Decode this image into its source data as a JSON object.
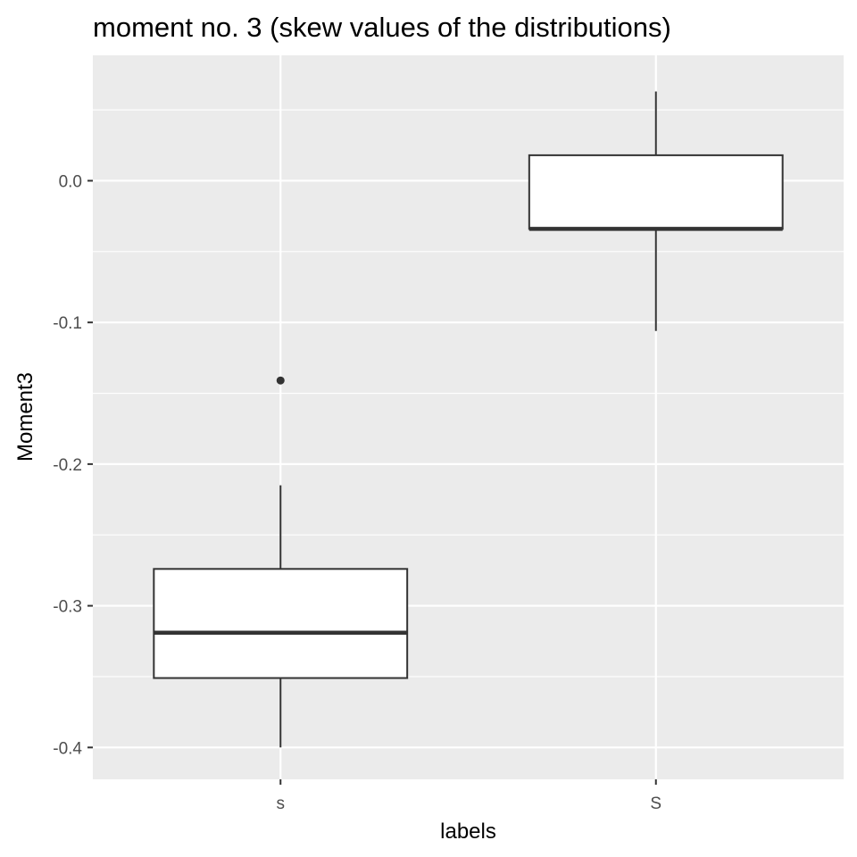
{
  "chart_data": {
    "type": "boxplot",
    "title": "moment no. 3 (skew values of the distributions)",
    "xlabel": "labels",
    "ylabel": "Moment3",
    "categories": [
      "s",
      "S"
    ],
    "ylim": [
      -0.4225,
      0.0885
    ],
    "y_ticks": [
      0.0,
      -0.1,
      -0.2,
      -0.3,
      -0.4
    ],
    "y_tick_labels": [
      "0.0",
      "-0.1",
      "-0.2",
      "-0.3",
      "-0.4"
    ],
    "grid": true,
    "boxes": [
      {
        "category": "s",
        "whisker_low": -0.4,
        "q1": -0.351,
        "median": -0.319,
        "q3": -0.274,
        "whisker_high": -0.215,
        "outliers": [
          -0.141
        ]
      },
      {
        "category": "S",
        "whisker_low": -0.106,
        "q1": -0.034,
        "median": -0.034,
        "q3": 0.018,
        "whisker_high": 0.063,
        "outliers": []
      }
    ],
    "colors": {
      "panel": "#ebebeb",
      "grid": "#ffffff",
      "box_fill": "#ffffff",
      "box_line": "#333333",
      "tick_text": "#4d4d4d"
    }
  }
}
